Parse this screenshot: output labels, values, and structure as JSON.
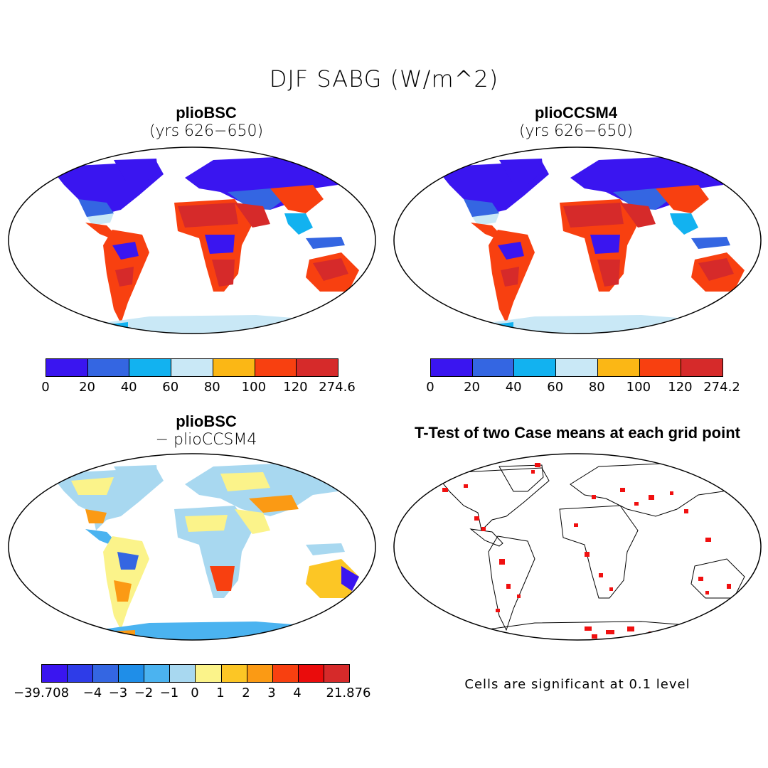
{
  "title": "DJF SABG (W/m^2)",
  "panels": {
    "top_left": {
      "name": "plioBSC",
      "subtitle": "(yrs 626−650)"
    },
    "top_right": {
      "name": "plioCCSM4",
      "subtitle": "(yrs 626−650)"
    },
    "bottom_left": {
      "name": "plioBSC",
      "subtitle": "− plioCCSM4"
    },
    "bottom_right": {
      "title": "T-Test of two Case means at each grid point",
      "note": "Cells are significant at 0.1 level"
    }
  },
  "colorbars": {
    "abs_left": {
      "labels": [
        "0",
        "20",
        "40",
        "60",
        "80",
        "100",
        "120",
        "274.6"
      ],
      "colors": [
        "#3a15f0",
        "#3466e2",
        "#12b2f0",
        "#c9e8f6",
        "#fbb715",
        "#f84010",
        "#d62a2a"
      ]
    },
    "abs_right": {
      "labels": [
        "0",
        "20",
        "40",
        "60",
        "80",
        "100",
        "120",
        "274.2"
      ],
      "colors": [
        "#3a15f0",
        "#3466e2",
        "#12b2f0",
        "#c9e8f6",
        "#fbb715",
        "#f84010",
        "#d62a2a"
      ]
    },
    "diff": {
      "labels": [
        "−39.708",
        "−4",
        "−3",
        "−2",
        "−1",
        "0",
        "1",
        "2",
        "3",
        "4",
        "21.876"
      ],
      "colors": [
        "#3a15f0",
        "#2e3ce8",
        "#3466e2",
        "#1f8ee8",
        "#4bb3f0",
        "#a8d8f0",
        "#fbf38a",
        "#fcc625",
        "#fb9a14",
        "#f84010",
        "#ea0c0c",
        "#d62a2a"
      ]
    }
  }
}
